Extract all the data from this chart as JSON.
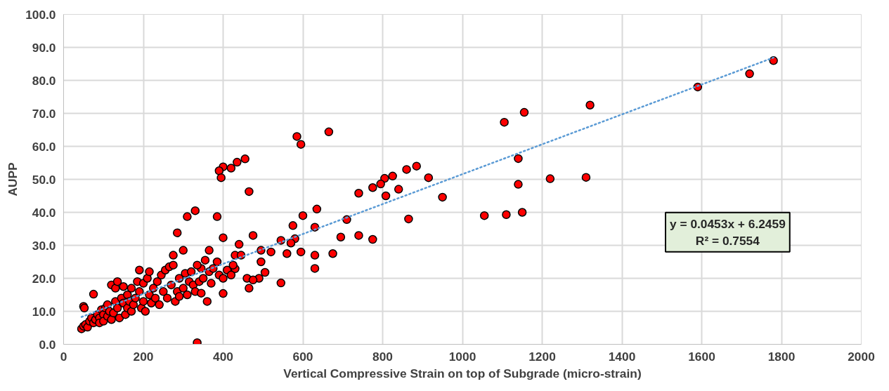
{
  "chart_data": {
    "type": "scatter",
    "xlabel": "Vertical Compressive Strain on top of Subgrade (micro-strain)",
    "ylabel": "AUPP",
    "xlim": [
      0,
      2000
    ],
    "xticks": [
      0,
      200,
      400,
      600,
      800,
      1000,
      1200,
      1400,
      1600,
      1800,
      2000
    ],
    "ylim": [
      0,
      100
    ],
    "yticks": [
      {
        "value": 0,
        "label": "0.0"
      },
      {
        "value": 10,
        "label": "10.0"
      },
      {
        "value": 20,
        "label": "20.0"
      },
      {
        "value": 30,
        "label": "30.0"
      },
      {
        "value": 40,
        "label": "40.0"
      },
      {
        "value": 50,
        "label": "50.0"
      },
      {
        "value": 60,
        "label": "60.0"
      },
      {
        "value": 70,
        "label": "70.0"
      },
      {
        "value": 80,
        "label": "80.0"
      },
      {
        "value": 90,
        "label": "90.0"
      },
      {
        "value": 100,
        "label": "100.0"
      }
    ],
    "grid": true,
    "marker": "circle",
    "series": [
      {
        "color": "#ff0000",
        "x": [
          1780,
          1720,
          1590,
          1320,
          1155,
          1105,
          1140,
          1140,
          1220,
          1310,
          1150,
          1110,
          1055,
          950,
          915,
          885,
          860,
          840,
          825,
          805,
          808,
          795,
          775,
          865,
          775,
          740,
          740,
          710,
          695,
          675,
          665,
          585,
          595,
          635,
          630,
          600,
          630,
          630,
          595,
          580,
          575,
          570,
          560,
          545,
          545,
          520,
          505,
          495,
          490,
          495,
          475,
          465,
          465,
          460,
          455,
          435,
          420,
          400,
          390,
          395,
          400,
          385,
          400,
          330,
          335,
          310,
          285,
          300,
          360,
          365,
          345,
          430,
          440,
          430,
          45,
          50,
          55,
          60,
          50,
          52,
          65,
          70,
          75,
          75,
          80,
          85,
          90,
          90,
          95,
          100,
          100,
          105,
          110,
          110,
          115,
          120,
          120,
          125,
          130,
          130,
          135,
          135,
          140,
          145,
          150,
          150,
          155,
          160,
          160,
          165,
          170,
          170,
          175,
          180,
          185,
          190,
          190,
          195,
          200,
          200,
          205,
          210,
          215,
          215,
          220,
          225,
          230,
          235,
          240,
          245,
          250,
          255,
          260,
          265,
          270,
          275,
          275,
          280,
          285,
          290,
          290,
          300,
          305,
          310,
          315,
          320,
          325,
          330,
          335,
          340,
          345,
          350,
          355,
          365,
          370,
          375,
          385,
          390,
          400,
          410,
          420,
          425,
          445,
          475
        ],
        "values": [
          86,
          82,
          78,
          72.5,
          70.3,
          67.3,
          56.3,
          48.5,
          50.2,
          50.6,
          40,
          39.3,
          39,
          44.6,
          50.5,
          54,
          53,
          47,
          51,
          50.3,
          45,
          48.6,
          47.5,
          38,
          31.8,
          45.8,
          33,
          37.8,
          32.5,
          27.5,
          64.4,
          63,
          60.6,
          41,
          35.5,
          39,
          27,
          23,
          28,
          32,
          36,
          30.7,
          27.5,
          31.5,
          18.6,
          28,
          21.8,
          28.5,
          20,
          25,
          33,
          46.3,
          17,
          20,
          56.2,
          55.2,
          53.4,
          53.8,
          52.6,
          50.5,
          32.3,
          38.7,
          15.4,
          40.5,
          0.5,
          38.7,
          33.8,
          28.5,
          13,
          28.5,
          23,
          22.9,
          30.3,
          27,
          4.7,
          5.5,
          6,
          5.2,
          11.5,
          11,
          7,
          8,
          6.5,
          15.2,
          7.5,
          9,
          8,
          6.5,
          10.5,
          9,
          7,
          11,
          8.5,
          12,
          10,
          18,
          7.5,
          9.5,
          13,
          17,
          11,
          19,
          8,
          14,
          12.5,
          17.5,
          9,
          15,
          11,
          13,
          17,
          10,
          12,
          14,
          19,
          22.5,
          16,
          11,
          13,
          18.5,
          10,
          20,
          15,
          22,
          12.5,
          17,
          14,
          19,
          12,
          21,
          16,
          22.5,
          14,
          23.5,
          18,
          24,
          27,
          13,
          16,
          20,
          14.5,
          17,
          21.5,
          15,
          19,
          22,
          18,
          16,
          24,
          19,
          15.5,
          20,
          25.5,
          22,
          18.5,
          23,
          25,
          21,
          20,
          22.5,
          21,
          24,
          27,
          19.5
        ]
      },
      {
        "type": "line",
        "color": "#5b9bd5",
        "line_style": "dotted",
        "marker": "none",
        "x": [
          45,
          1780
        ],
        "values": [
          8.3,
          86.9
        ]
      }
    ],
    "annotations": [
      "y = 0.0453x + 6.2459\nR² = 0.7554"
    ]
  }
}
